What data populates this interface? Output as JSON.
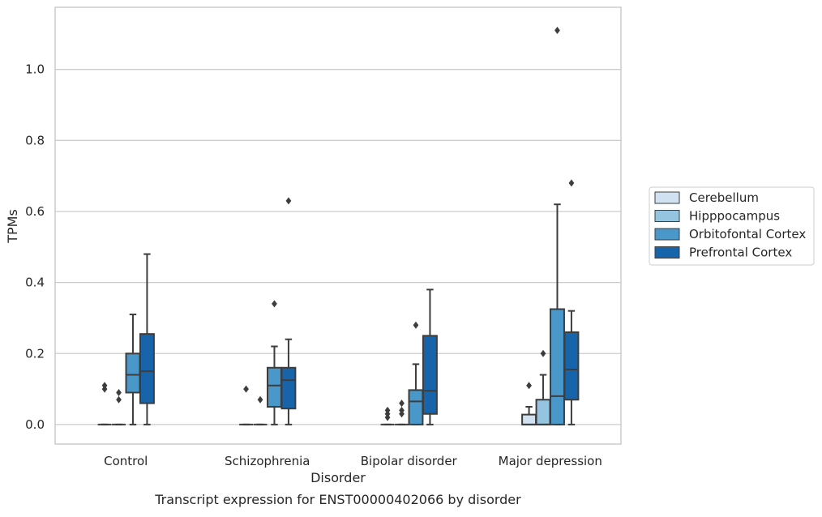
{
  "chart_data": {
    "type": "box",
    "caption": "Transcript expression for ENST00000402066 by disorder",
    "xlabel": "Disorder",
    "ylabel": "TPMs",
    "ylim": [
      -0.055,
      1.175
    ],
    "yticks": [
      0.0,
      0.2,
      0.4,
      0.6,
      0.8,
      1.0
    ],
    "ytick_labels": [
      "0.0",
      "0.2",
      "0.4",
      "0.6",
      "0.8",
      "1.0"
    ],
    "grid": true,
    "legend_position": "right",
    "categories": [
      "Control",
      "Schizophrenia",
      "Bipolar disorder",
      "Major depression"
    ],
    "series": [
      {
        "name": "Cerebellum",
        "color": "#d0e1f2",
        "boxes": [
          {
            "q1": 0.0,
            "median": 0.0,
            "q3": 0.0,
            "whisker_low": 0.0,
            "whisker_high": 0.0,
            "outliers": [
              0.1,
              0.11
            ]
          },
          {
            "q1": 0.0,
            "median": 0.0,
            "q3": 0.0,
            "whisker_low": 0.0,
            "whisker_high": 0.0,
            "outliers": [
              0.1
            ]
          },
          {
            "q1": 0.0,
            "median": 0.0,
            "q3": 0.0,
            "whisker_low": 0.0,
            "whisker_high": 0.0,
            "outliers": [
              0.02,
              0.03,
              0.04
            ]
          },
          {
            "q1": 0.0,
            "median": 0.0,
            "q3": 0.028,
            "whisker_low": 0.0,
            "whisker_high": 0.05,
            "outliers": [
              0.11
            ]
          }
        ]
      },
      {
        "name": "Hipppocampus",
        "color": "#94c4df",
        "boxes": [
          {
            "q1": 0.0,
            "median": 0.0,
            "q3": 0.0,
            "whisker_low": 0.0,
            "whisker_high": 0.0,
            "outliers": [
              0.07,
              0.09
            ]
          },
          {
            "q1": 0.0,
            "median": 0.0,
            "q3": 0.0,
            "whisker_low": 0.0,
            "whisker_high": 0.0,
            "outliers": [
              0.07
            ]
          },
          {
            "q1": 0.0,
            "median": 0.0,
            "q3": 0.0,
            "whisker_low": 0.0,
            "whisker_high": 0.0,
            "outliers": [
              0.03,
              0.04,
              0.06
            ]
          },
          {
            "q1": 0.0,
            "median": 0.0,
            "q3": 0.07,
            "whisker_low": 0.0,
            "whisker_high": 0.14,
            "outliers": [
              0.2
            ]
          }
        ]
      },
      {
        "name": "Orbitofontal Cortex",
        "color": "#4a98c9",
        "boxes": [
          {
            "q1": 0.09,
            "median": 0.14,
            "q3": 0.2,
            "whisker_low": 0.0,
            "whisker_high": 0.31,
            "outliers": []
          },
          {
            "q1": 0.05,
            "median": 0.11,
            "q3": 0.16,
            "whisker_low": 0.0,
            "whisker_high": 0.22,
            "outliers": [
              0.34
            ]
          },
          {
            "q1": 0.0,
            "median": 0.065,
            "q3": 0.097,
            "whisker_low": 0.0,
            "whisker_high": 0.17,
            "outliers": [
              0.28
            ]
          },
          {
            "q1": 0.0,
            "median": 0.08,
            "q3": 0.325,
            "whisker_low": 0.0,
            "whisker_high": 0.62,
            "outliers": [
              1.11
            ]
          }
        ]
      },
      {
        "name": "Prefrontal Cortex",
        "color": "#1764ab",
        "boxes": [
          {
            "q1": 0.06,
            "median": 0.15,
            "q3": 0.255,
            "whisker_low": 0.0,
            "whisker_high": 0.48,
            "outliers": []
          },
          {
            "q1": 0.045,
            "median": 0.125,
            "q3": 0.16,
            "whisker_low": 0.0,
            "whisker_high": 0.24,
            "outliers": [
              0.63
            ]
          },
          {
            "q1": 0.03,
            "median": 0.095,
            "q3": 0.25,
            "whisker_low": 0.0,
            "whisker_high": 0.38,
            "outliers": []
          },
          {
            "q1": 0.07,
            "median": 0.155,
            "q3": 0.26,
            "whisker_low": 0.0,
            "whisker_high": 0.32,
            "outliers": [
              0.68
            ]
          }
        ]
      }
    ]
  }
}
